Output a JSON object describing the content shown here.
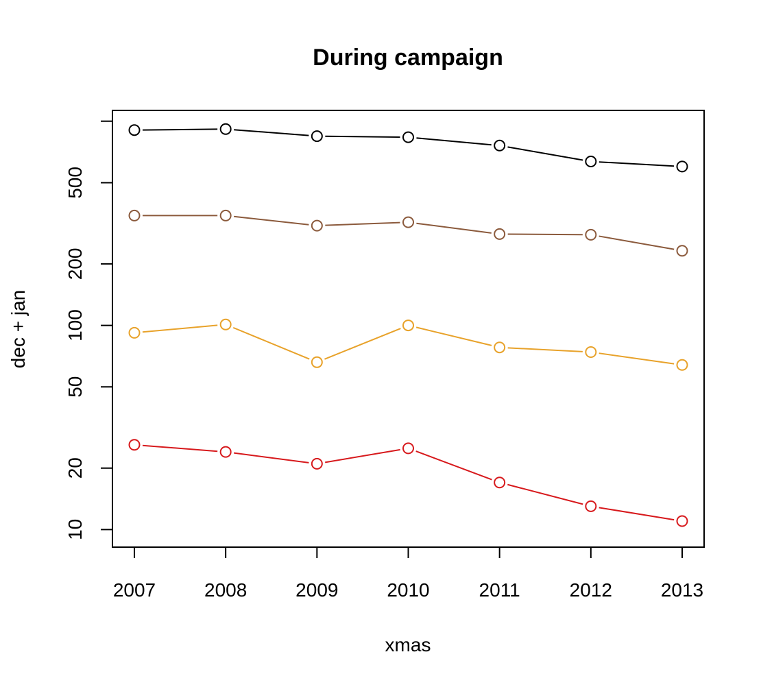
{
  "chart_data": {
    "type": "line",
    "title": "During campaign",
    "xlabel": "xmas",
    "ylabel": "dec + jan",
    "x": [
      2007,
      2008,
      2009,
      2010,
      2011,
      2012,
      2013
    ],
    "x_tick_labels": [
      "2007",
      "2008",
      "2009",
      "2010",
      "2011",
      "2012",
      "2013"
    ],
    "y_scale": "log",
    "ylim": [
      8.2,
      1130
    ],
    "y_ticks": [
      10,
      20,
      50,
      100,
      200,
      500,
      1000
    ],
    "y_tick_labels": [
      "10",
      "20",
      "50",
      "100",
      "200",
      "500",
      ""
    ],
    "grid": false,
    "marker": "open-circle",
    "series": [
      {
        "color": "#000000",
        "values": [
          905,
          915,
          845,
          835,
          760,
          635,
          600
        ]
      },
      {
        "color": "#8B5A3C",
        "values": [
          345,
          345,
          308,
          320,
          280,
          278,
          232
        ]
      },
      {
        "color": "#E8A22A",
        "values": [
          92,
          101,
          66,
          100,
          78,
          74,
          64
        ]
      },
      {
        "color": "#D7191C",
        "values": [
          26,
          24,
          21,
          25,
          17,
          13,
          11
        ]
      }
    ]
  }
}
